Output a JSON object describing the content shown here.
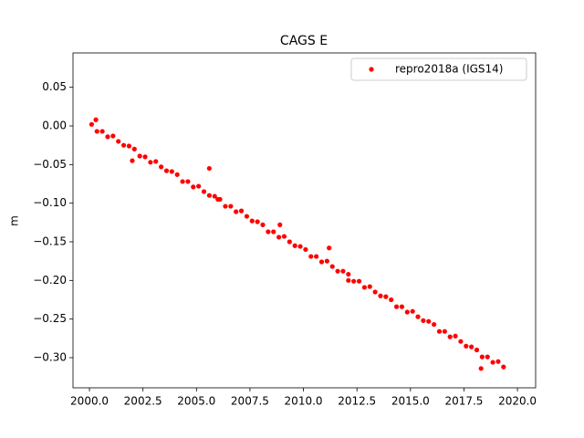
{
  "chart_data": {
    "type": "scatter",
    "title": "CAGS E",
    "y_label": "m",
    "xlim": [
      1999.23,
      2020.85
    ],
    "ylim": [
      -0.339,
      0.0945
    ],
    "xticks": [
      {
        "value": 2000,
        "label": "2000.0"
      },
      {
        "value": 2002.5,
        "label": "2002.5"
      },
      {
        "value": 2005,
        "label": "2005.0"
      },
      {
        "value": 2007.5,
        "label": "2007.5"
      },
      {
        "value": 2010,
        "label": "2010.0"
      },
      {
        "value": 2012.5,
        "label": "2012.5"
      },
      {
        "value": 2015,
        "label": "2015.0"
      },
      {
        "value": 2017.5,
        "label": "2017.5"
      },
      {
        "value": 2020,
        "label": "2020.0"
      }
    ],
    "yticks": [
      0.05,
      {
        "value": 0,
        "label": "0.00"
      },
      {
        "value": -0.05,
        "label": "−0.05"
      },
      {
        "value": -0.1,
        "label": "−0.10"
      },
      {
        "value": -0.15,
        "label": "−0.15"
      },
      {
        "value": -0.2,
        "label": "−0.20"
      },
      {
        "value": -0.25,
        "label": "−0.25"
      },
      {
        "value": -0.3,
        "label": "−0.30"
      }
    ],
    "legend": "upper right",
    "series": [
      {
        "name": "repro2018a (IGS14)",
        "color": "#ff0000",
        "x": [
          2000.1,
          2000.35,
          2000.6,
          2000.85,
          2001.1,
          2001.35,
          2001.6,
          2001.85,
          2002.1,
          2002.35,
          2002.6,
          2002.85,
          2003.1,
          2003.35,
          2003.6,
          2003.85,
          2004.1,
          2004.35,
          2004.6,
          2004.85,
          2005.1,
          2005.35,
          2005.6,
          2005.85,
          2006.1,
          2006.35,
          2006.6,
          2006.85,
          2007.1,
          2007.35,
          2007.6,
          2007.85,
          2008.1,
          2008.35,
          2008.6,
          2008.85,
          2009.1,
          2009.35,
          2009.6,
          2009.85,
          2010.1,
          2010.35,
          2010.6,
          2010.85,
          2011.1,
          2011.35,
          2011.6,
          2011.85,
          2012.1,
          2012.35,
          2012.6,
          2012.85,
          2013.1,
          2013.35,
          2013.6,
          2013.85,
          2014.1,
          2014.35,
          2014.6,
          2014.85,
          2015.1,
          2015.35,
          2015.6,
          2015.85,
          2016.1,
          2016.35,
          2016.6,
          2016.85,
          2017.1,
          2017.35,
          2017.6,
          2017.85,
          2018.1,
          2018.35,
          2018.6,
          2018.85,
          2019.1,
          2019.35,
          2000.3,
          2002.0,
          2005.6,
          2006.0,
          2008.9,
          2011.2,
          2012.1,
          2018.3
        ],
        "values": [
          0.002,
          -0.007,
          -0.007,
          -0.014,
          -0.013,
          -0.02,
          -0.025,
          -0.026,
          -0.03,
          -0.039,
          -0.04,
          -0.047,
          -0.046,
          -0.053,
          -0.058,
          -0.059,
          -0.063,
          -0.072,
          -0.072,
          -0.079,
          -0.078,
          -0.085,
          -0.09,
          -0.091,
          -0.095,
          -0.104,
          -0.104,
          -0.111,
          -0.11,
          -0.117,
          -0.123,
          -0.124,
          -0.128,
          -0.137,
          -0.137,
          -0.144,
          -0.143,
          -0.15,
          -0.155,
          -0.156,
          -0.16,
          -0.169,
          -0.169,
          -0.176,
          -0.175,
          -0.182,
          -0.188,
          -0.188,
          -0.192,
          -0.201,
          -0.201,
          -0.209,
          -0.208,
          -0.215,
          -0.22,
          -0.221,
          -0.225,
          -0.234,
          -0.234,
          -0.241,
          -0.24,
          -0.247,
          -0.252,
          -0.253,
          -0.257,
          -0.266,
          -0.266,
          -0.273,
          -0.272,
          -0.279,
          -0.285,
          -0.286,
          -0.29,
          -0.299,
          -0.299,
          -0.306,
          -0.305,
          -0.312,
          0.008,
          -0.045,
          -0.055,
          -0.095,
          -0.128,
          -0.158,
          -0.2,
          -0.314
        ]
      }
    ]
  }
}
